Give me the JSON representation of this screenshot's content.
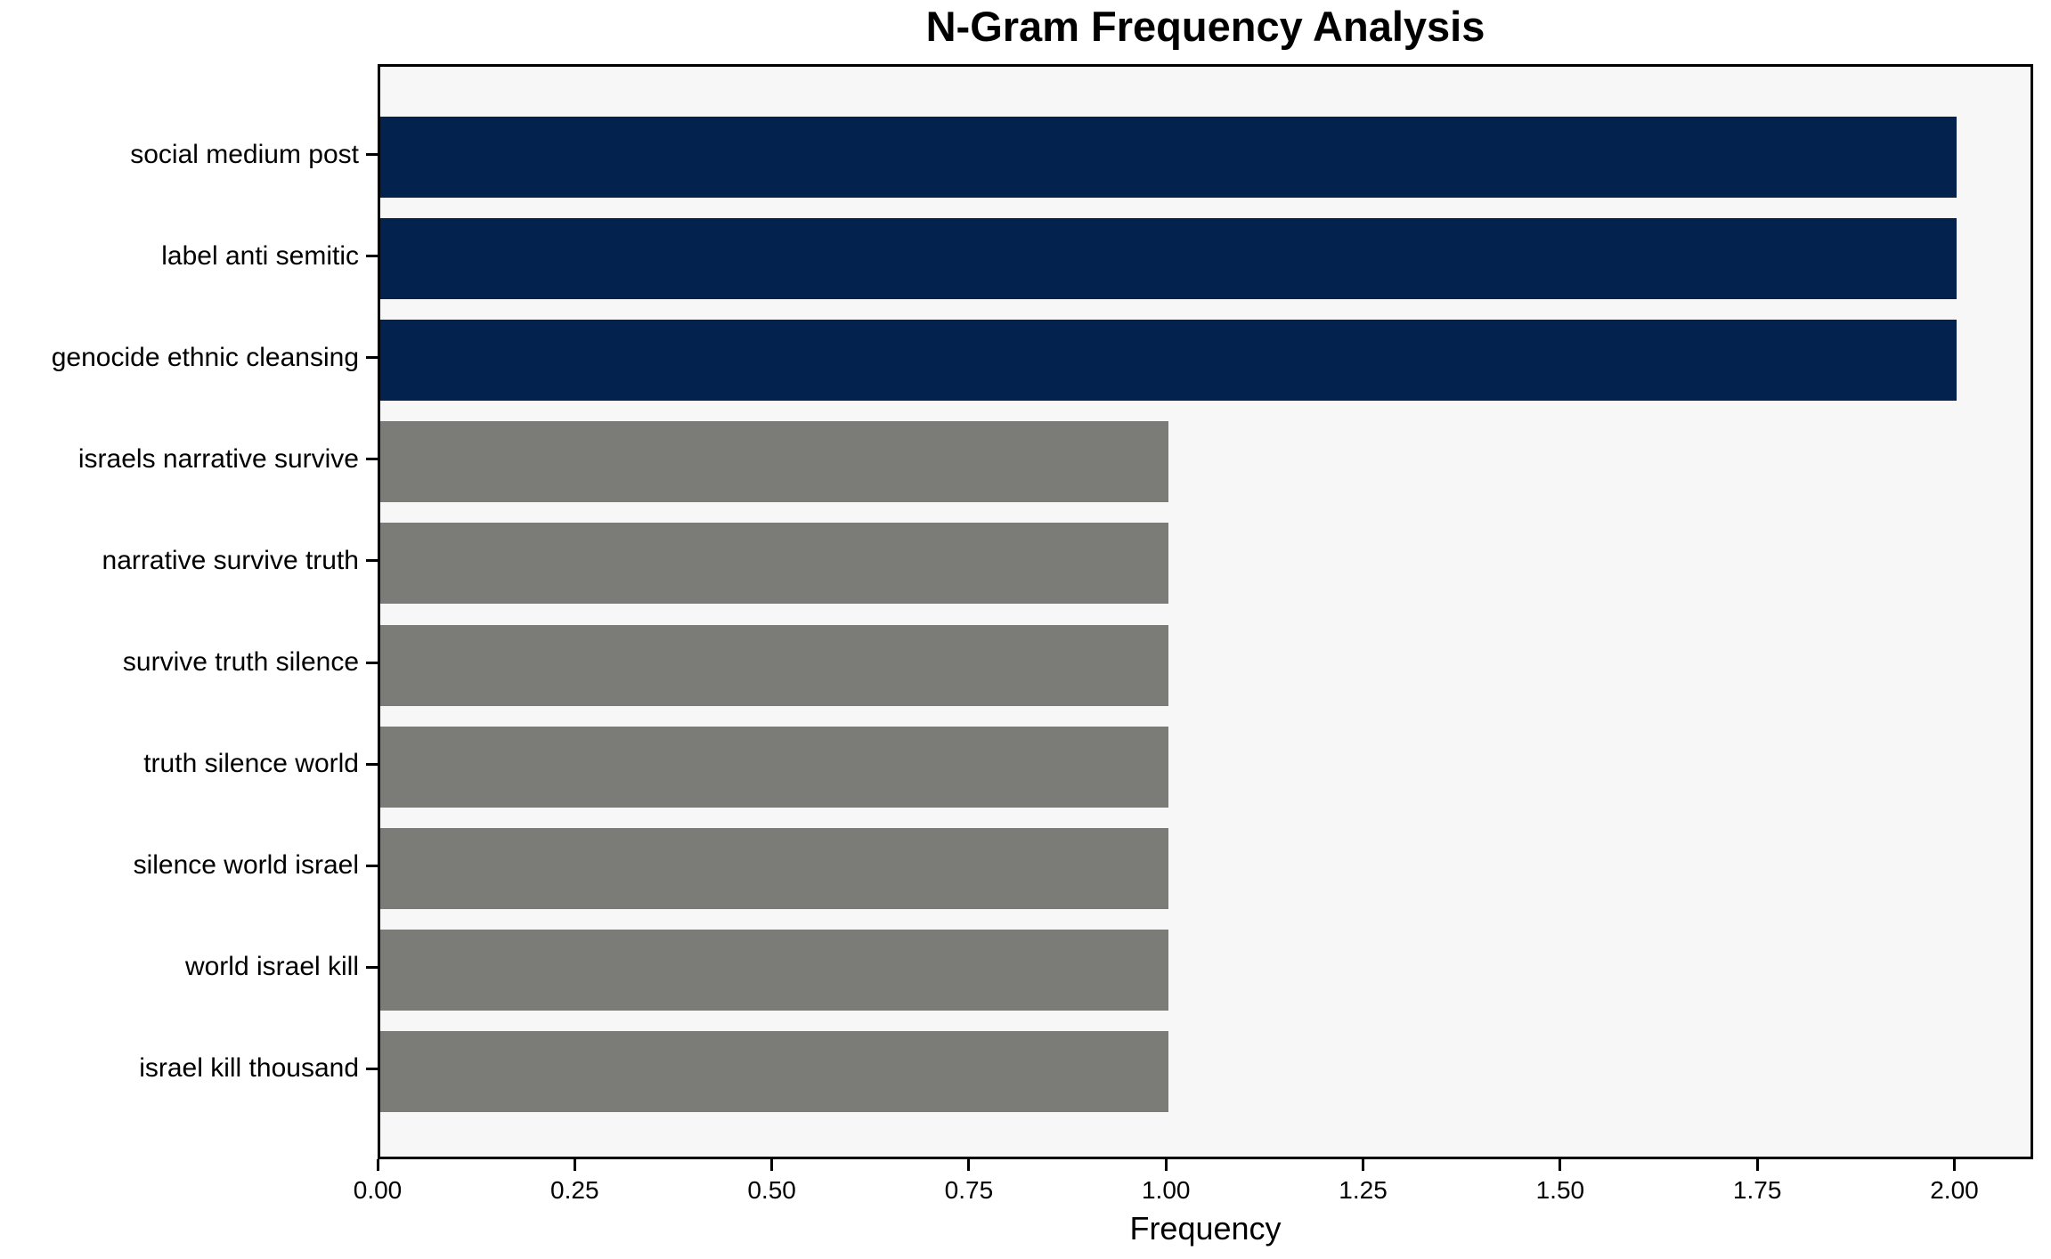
{
  "chart_data": {
    "type": "bar",
    "orientation": "horizontal",
    "title": "N-Gram Frequency Analysis",
    "xlabel": "Frequency",
    "ylabel": "",
    "categories": [
      "social medium post",
      "label anti semitic",
      "genocide ethnic cleansing",
      "israels narrative survive",
      "narrative survive truth",
      "survive truth silence",
      "truth silence world",
      "silence world israel",
      "world israel kill",
      "israel kill thousand"
    ],
    "values": [
      2,
      2,
      2,
      1,
      1,
      1,
      1,
      1,
      1,
      1
    ],
    "bar_colors": [
      "#03234e",
      "#03234e",
      "#03234e",
      "#7b7b78",
      "#7b7b78",
      "#7b7b78",
      "#7b7b78",
      "#7b7b78",
      "#7b7b78",
      "#7b7b78"
    ],
    "highlight_color": "#03234e",
    "base_color": "#7b7b78",
    "xlim": [
      0,
      2.1
    ],
    "x_ticks": [
      0,
      0.25,
      0.5,
      0.75,
      1.0,
      1.25,
      1.5,
      1.75,
      2.0
    ],
    "x_tick_labels": [
      "0.00",
      "0.25",
      "0.50",
      "0.75",
      "1.00",
      "1.25",
      "1.50",
      "1.75",
      "2.00"
    ],
    "grid": false,
    "legend_position": "none",
    "plot_background": "#f7f7f7",
    "figure_background": "#ffffff",
    "spine_color": "#000000"
  }
}
